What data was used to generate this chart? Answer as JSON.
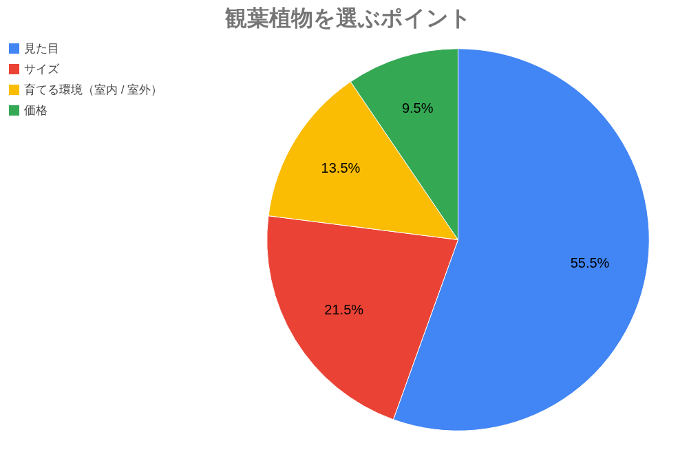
{
  "chart_data": {
    "type": "pie",
    "title": "観葉植物を選ぶポイント",
    "categories": [
      "見た目",
      "サイズ",
      "育てる環境（室内 / 室外）",
      "価格"
    ],
    "values": [
      55.5,
      21.5,
      13.5,
      9.5
    ],
    "colors": [
      "#4285f4",
      "#ea4335",
      "#fbbc04",
      "#34a853"
    ],
    "value_labels": [
      "55.5%",
      "21.5%",
      "13.5%",
      "9.5%"
    ],
    "legend": "top left"
  }
}
